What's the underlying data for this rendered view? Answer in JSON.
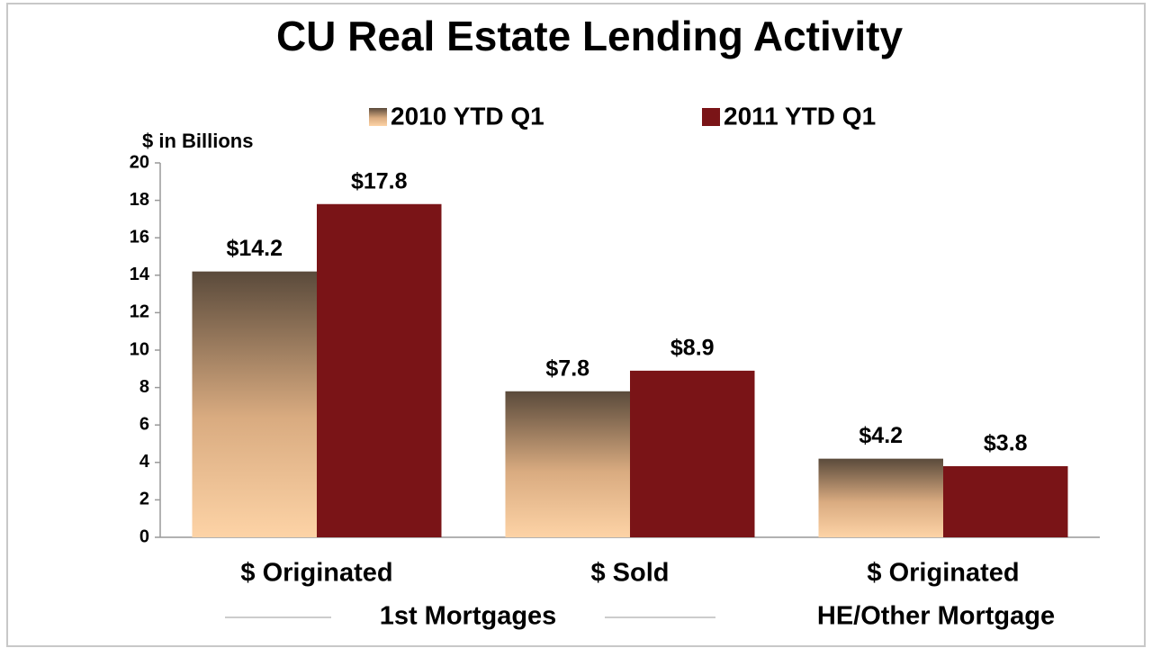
{
  "chart_data": {
    "type": "bar",
    "title": "CU Real Estate Lending Activity",
    "y_axis_label": "$ in Billions",
    "categories": [
      "$ Originated",
      "$ Sold",
      "$ Originated"
    ],
    "group_labels": [
      "1st Mortgages",
      "HE/Other Mortgage"
    ],
    "series": [
      {
        "name": "2010 YTD Q1",
        "color": "#5a4a3b",
        "values": [
          14.2,
          7.8,
          4.2
        ],
        "value_labels": [
          "$14.2",
          "$7.8",
          "$4.2"
        ]
      },
      {
        "name": "2011 YTD Q1",
        "color": "#7a1417",
        "values": [
          17.8,
          8.9,
          3.8
        ],
        "value_labels": [
          "$17.8",
          "$8.9",
          "$3.8"
        ]
      }
    ],
    "ylim": [
      0,
      20
    ],
    "yticks": [
      0,
      2,
      4,
      6,
      8,
      10,
      12,
      14,
      16,
      18,
      20
    ]
  }
}
